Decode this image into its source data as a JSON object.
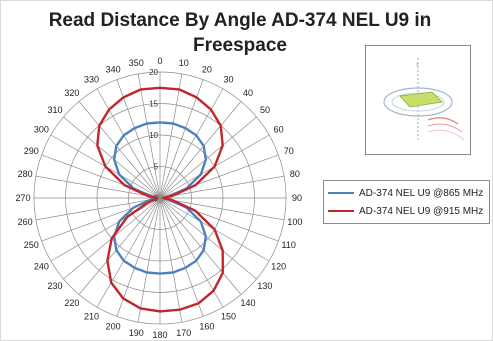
{
  "chart_data": {
    "type": "polar-line",
    "title": "Read Distance By Angle AD-374 NEL U9 in Freespace",
    "title_lines": [
      "Read Distance By Angle AD-374 NEL U9 in",
      "Freespace"
    ],
    "angle_ticks": [
      "0",
      "10",
      "20",
      "30",
      "40",
      "50",
      "60",
      "70",
      "80",
      "90",
      "100",
      "110",
      "120",
      "130",
      "140",
      "150",
      "160",
      "170",
      "180",
      "190",
      "200",
      "210",
      "220",
      "230",
      "240",
      "250",
      "260",
      "270",
      "280",
      "290",
      "300",
      "310",
      "320",
      "330",
      "340",
      "350"
    ],
    "angles": [
      0,
      10,
      20,
      30,
      40,
      50,
      60,
      70,
      80,
      90,
      100,
      110,
      120,
      130,
      140,
      150,
      160,
      170,
      180,
      190,
      200,
      210,
      220,
      230,
      240,
      250,
      260,
      270,
      280,
      290,
      300,
      310,
      320,
      330,
      340,
      350
    ],
    "radial_ticks": [
      "0",
      "5",
      "10",
      "15",
      "20"
    ],
    "radial_max": 20,
    "grid": true,
    "legend_position": "right",
    "series": [
      {
        "name": "AD-374 NEL U9 @865 MHz",
        "color": "#4f81bd",
        "values": [
          12,
          12,
          11.8,
          11.5,
          10.8,
          9.5,
          7.5,
          4.5,
          1.5,
          0.5,
          1.5,
          4.5,
          7.5,
          9.5,
          10.8,
          11.5,
          11.8,
          12,
          12,
          12,
          11.8,
          11.5,
          10.8,
          9.5,
          7.5,
          4.5,
          1.5,
          0.5,
          1.5,
          4.5,
          7.5,
          9.5,
          10.8,
          11.5,
          11.8,
          12
        ]
      },
      {
        "name": "AD-374 NEL U9 @915 MHz",
        "color": "#c0272d",
        "values": [
          17.5,
          17.5,
          17,
          16.2,
          15,
          13,
          10,
          6,
          2,
          0.5,
          2,
          6,
          10,
          13,
          15.5,
          17,
          17.8,
          18,
          18,
          17.8,
          17,
          15.5,
          13,
          10,
          6,
          2,
          0.5,
          0.5,
          2,
          6,
          10,
          13,
          15,
          16.2,
          17,
          17.5
        ]
      }
    ]
  },
  "inset": {
    "icon": "antenna-tag-radiation-diagram-icon"
  }
}
